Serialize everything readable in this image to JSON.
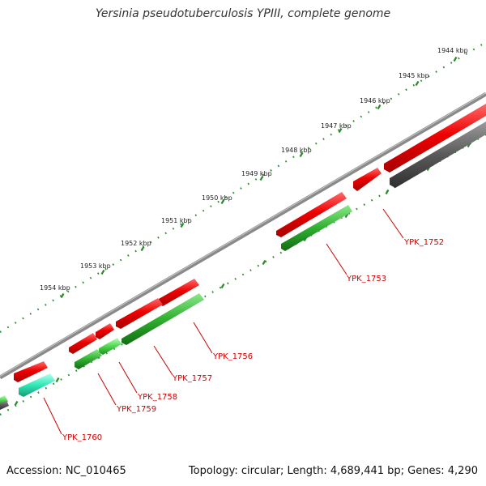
{
  "title": "Yersinia pseudotuberculosis YPIII, complete genome",
  "footer": {
    "accession": "Accession: NC_010465",
    "summary": "Topology: circular; Length: 4,689,441 bp; Genes: 4,290"
  },
  "kbp_ticks": [
    "1944 kbp",
    "1945 kbp",
    "1946 kbp",
    "1947 kbp",
    "1948 kbp",
    "1949 kbp",
    "1950 kbp",
    "1951 kbp",
    "1952 kbp",
    "1953 kbp",
    "1954 kbp"
  ],
  "gene_labels": [
    "YPK_1752",
    "YPK_1753",
    "YPK_1756",
    "YPK_1757",
    "YPK_1758",
    "YPK_1759",
    "YPK_1760"
  ],
  "colors": {
    "forward_gene": "#e60000",
    "reverse_gene_dark": "#1f9a1f",
    "reverse_gene_light": "#4dd44d",
    "reverse_gene_cyan": "#2ee6b0",
    "gray_gene": "#555555",
    "backbone": "#888888",
    "tick": "#2a8a2a",
    "label": "#cc0000"
  }
}
